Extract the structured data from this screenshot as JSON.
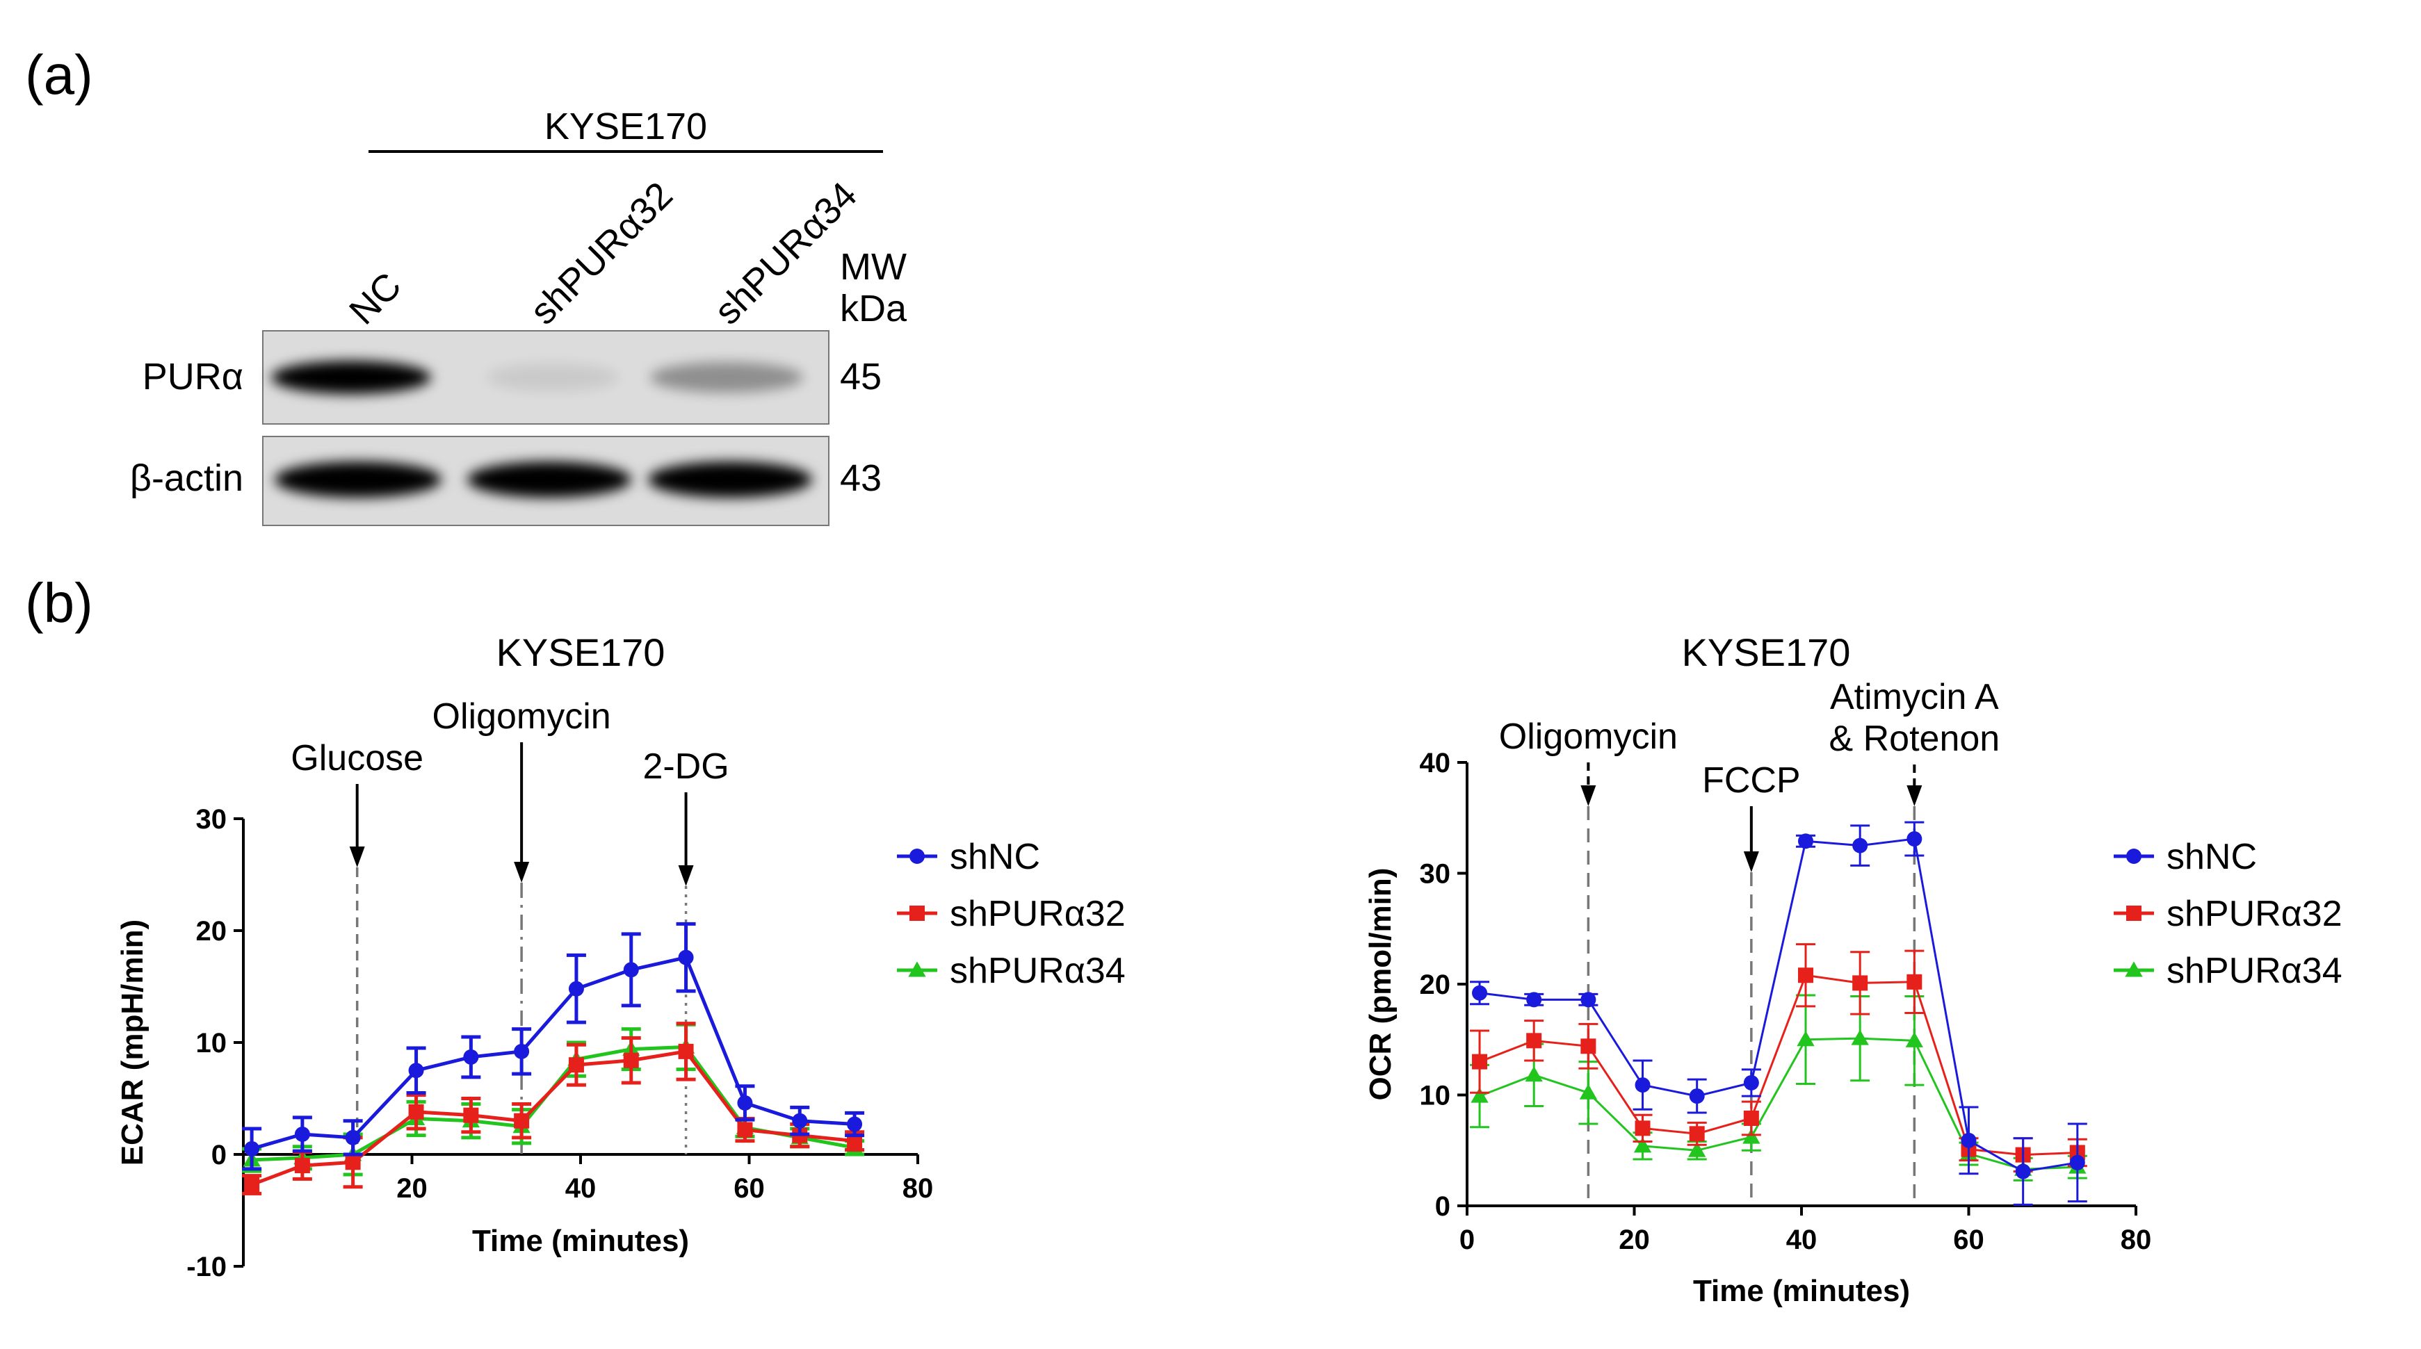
{
  "panel_a": {
    "label": "(a)",
    "cell_line": "KYSE170",
    "lanes": [
      "NC",
      "shPURα32",
      "shPURα34"
    ],
    "mw_header": [
      "MW",
      "kDa"
    ],
    "rows": [
      {
        "protein": "PURα",
        "mw": "45",
        "intensity": [
          1.0,
          0.08,
          0.35
        ]
      },
      {
        "protein": "β-actin",
        "mw": "43",
        "intensity": [
          1.0,
          1.0,
          1.0
        ]
      }
    ]
  },
  "panel_b": {
    "label": "(b)"
  },
  "colors": {
    "shNC": "#1a1adc",
    "shPURα32": "#e6201a",
    "shPURα34": "#22c41e"
  },
  "chart_data": [
    {
      "type": "line",
      "title": "KYSE170",
      "xlabel": "Time (minutes)",
      "ylabel": "ECAR (mpH/min)",
      "xlim": [
        0,
        80
      ],
      "ylim": [
        -10,
        30
      ],
      "xticks": [
        20,
        40,
        60,
        80
      ],
      "yticks": [
        -10,
        0,
        10,
        20,
        30
      ],
      "x": [
        1,
        7,
        13,
        20.5,
        27,
        33,
        39.5,
        46,
        52.5,
        59.5,
        66,
        72.5
      ],
      "series": [
        {
          "name": "shNC",
          "marker": "circle",
          "values": [
            0.5,
            1.8,
            1.5,
            7.5,
            8.7,
            9.2,
            14.8,
            16.5,
            17.6,
            4.6,
            3.0,
            2.7
          ],
          "errors": [
            1.8,
            1.5,
            1.5,
            2.0,
            1.8,
            2.0,
            3.0,
            3.2,
            3.0,
            1.5,
            1.2,
            1.0
          ]
        },
        {
          "name": "shPURα32",
          "marker": "square",
          "values": [
            -2.7,
            -1.0,
            -0.7,
            3.8,
            3.5,
            3.0,
            8.0,
            8.4,
            9.2,
            2.2,
            1.7,
            1.2
          ],
          "errors": [
            0.8,
            1.2,
            2.2,
            1.5,
            1.5,
            1.5,
            1.8,
            2.0,
            2.5,
            1.0,
            1.0,
            0.8
          ]
        },
        {
          "name": "shPURα34",
          "marker": "triangle",
          "values": [
            -0.5,
            -0.3,
            0.0,
            3.2,
            3.0,
            2.5,
            8.5,
            9.4,
            9.6,
            2.4,
            1.5,
            0.6
          ],
          "errors": [
            1.0,
            1.0,
            1.8,
            1.5,
            1.5,
            1.5,
            1.5,
            1.8,
            2.0,
            0.8,
            0.8,
            0.6
          ]
        }
      ],
      "annotations": [
        {
          "label": "Glucose",
          "x": 13.5,
          "arrow": "solid",
          "line": "dashed"
        },
        {
          "label": "Oligomycin",
          "x": 33,
          "arrow": "solid",
          "line": "dashdot"
        },
        {
          "label": "2-DG",
          "x": 52.5,
          "arrow": "solid",
          "line": "dotted"
        }
      ],
      "legend": [
        "shNC",
        "shPURα32",
        "shPURα34"
      ],
      "legend_position": "right"
    },
    {
      "type": "line",
      "title": "KYSE170",
      "xlabel": "Time (minutes)",
      "ylabel": "OCR (pmol/min)",
      "xlim": [
        0,
        80
      ],
      "ylim": [
        0,
        40
      ],
      "xticks": [
        0,
        20,
        40,
        60,
        80
      ],
      "yticks": [
        0,
        10,
        20,
        30,
        40
      ],
      "x": [
        1.5,
        8,
        14.5,
        21,
        27.5,
        34,
        40.5,
        47,
        53.5,
        60,
        66.5,
        73
      ],
      "series": [
        {
          "name": "shNC",
          "marker": "circle",
          "values": [
            19.2,
            18.6,
            18.6,
            10.9,
            9.9,
            11.1,
            32.9,
            32.5,
            33.1,
            5.9,
            3.1,
            3.9
          ],
          "errors": [
            1.0,
            0.5,
            0.5,
            2.2,
            1.5,
            1.2,
            0.5,
            1.8,
            1.5,
            3.0,
            3.0,
            3.5
          ]
        },
        {
          "name": "shPURα32",
          "marker": "square",
          "values": [
            13.0,
            14.9,
            14.4,
            7.0,
            6.5,
            7.9,
            20.8,
            20.1,
            20.2,
            5.1,
            4.6,
            4.8
          ],
          "errors": [
            2.8,
            1.8,
            2.0,
            1.2,
            1.0,
            1.5,
            2.8,
            2.8,
            2.8,
            1.0,
            1.5,
            1.2
          ]
        },
        {
          "name": "shPURα34",
          "marker": "triangle",
          "values": [
            9.9,
            11.8,
            10.2,
            5.4,
            5.0,
            6.2,
            15.0,
            15.1,
            14.9,
            4.7,
            3.3,
            3.5
          ],
          "errors": [
            2.8,
            2.8,
            2.8,
            1.2,
            0.8,
            1.2,
            4.0,
            3.8,
            4.0,
            1.0,
            1.0,
            1.0
          ]
        }
      ],
      "annotations": [
        {
          "label": "Oligomycin",
          "x": 14.5,
          "arrow": "dashed",
          "line": "dashed"
        },
        {
          "label": "FCCP",
          "x": 34,
          "arrow": "solid",
          "line": "dashed"
        },
        {
          "label": "Atimycin A",
          "label2": "& Rotenon",
          "x": 53.5,
          "arrow": "dashed",
          "line": "dashed"
        }
      ],
      "legend": [
        "shNC",
        "shPURα32",
        "shPURα34"
      ],
      "legend_position": "right"
    }
  ]
}
